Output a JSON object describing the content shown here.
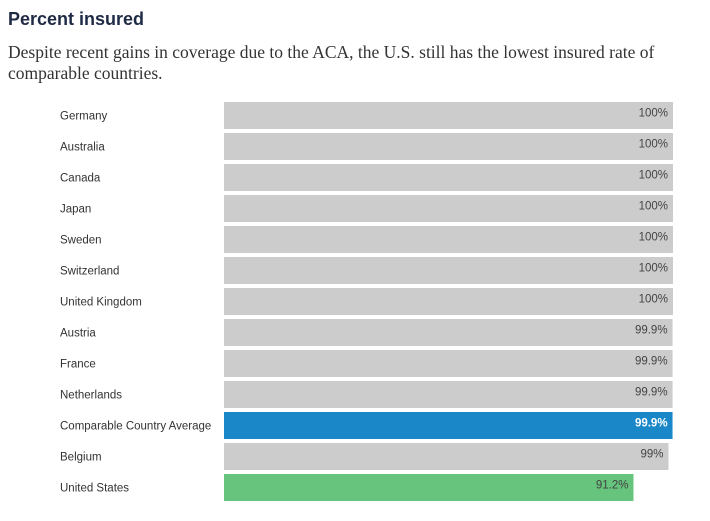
{
  "header": {
    "title": "Percent insured",
    "subtitle": "Despite recent gains in coverage due to the ACA, the U.S. still has the lowest insured rate of comparable countries."
  },
  "colors": {
    "bar_default": "#cccccc",
    "bar_average": "#1a87c9",
    "bar_us": "#66c47d"
  },
  "chart_data": {
    "type": "bar",
    "orientation": "horizontal",
    "title": "Percent insured",
    "xlim": [
      0,
      100
    ],
    "categories": [
      "Germany",
      "Australia",
      "Canada",
      "Japan",
      "Sweden",
      "Switzerland",
      "United Kingdom",
      "Austria",
      "France",
      "Netherlands",
      "Comparable Country Average",
      "Belgium",
      "United States"
    ],
    "values": [
      100,
      100,
      100,
      100,
      100,
      100,
      100,
      99.9,
      99.9,
      99.9,
      99.9,
      99,
      91.2
    ],
    "labels": [
      "100%",
      "100%",
      "100%",
      "100%",
      "100%",
      "100%",
      "100%",
      "99.9%",
      "99.9%",
      "99.9%",
      "99.9%",
      "99%",
      "91.2%"
    ],
    "highlight": {
      "Comparable Country Average": "average",
      "United States": "us"
    },
    "grid": false,
    "legend": "none"
  }
}
